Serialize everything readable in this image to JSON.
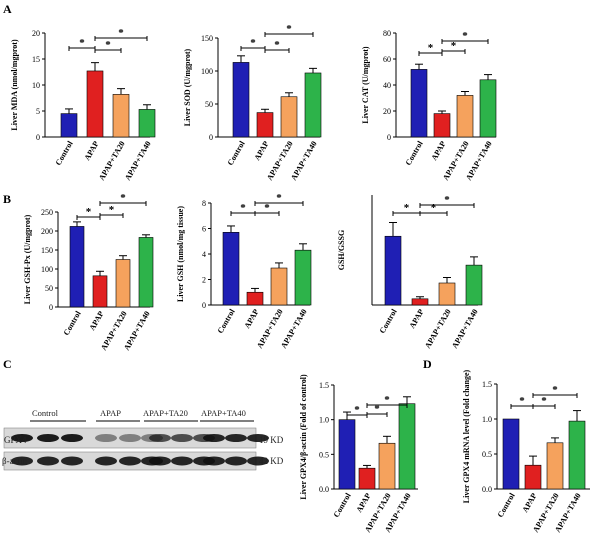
{
  "panels": [
    {
      "letter": "A"
    },
    {
      "letter": "B"
    },
    {
      "letter": "C"
    },
    {
      "letter": "D"
    }
  ],
  "colors": {
    "Control": "#1f1fb4",
    "APAP": "#e02020",
    "APAP+TA20": "#f5a25d",
    "APAP+TA40": "#2db34a"
  },
  "blot": {
    "lanes": [
      "Control",
      "APAP",
      "APAP+TA20",
      "APAP+TA40"
    ],
    "rows": [
      {
        "name": "GPX4",
        "kd": "19 KD"
      },
      {
        "name": "β-actin",
        "kd": "42 KD"
      }
    ]
  },
  "chart_data": [
    {
      "id": "mda",
      "type": "bar",
      "ylabel": "Liver MDA (nmol/mgprot)",
      "ylim": [
        0,
        20
      ],
      "yticks": [
        0,
        5,
        10,
        15,
        20
      ],
      "categories": [
        "Control",
        "APAP",
        "APAP+TA20",
        "APAP+TA40"
      ],
      "values": [
        4.5,
        12.7,
        8.2,
        5.3
      ],
      "errors": [
        0.9,
        1.6,
        1.1,
        0.9
      ]
    },
    {
      "id": "sod",
      "type": "bar",
      "ylabel": "Liver SOD (U/mgprot)",
      "ylim": [
        0,
        150
      ],
      "yticks": [
        0,
        50,
        100,
        150
      ],
      "categories": [
        "Control",
        "APAP",
        "APAP+TA20",
        "APAP+TA40"
      ],
      "values": [
        113,
        37,
        61,
        97
      ],
      "errors": [
        10,
        5,
        6,
        7
      ]
    },
    {
      "id": "cat",
      "type": "bar",
      "ylabel": "Liver CAT (U/mgprot)",
      "ylim": [
        0,
        80
      ],
      "yticks": [
        0,
        20,
        40,
        60,
        80
      ],
      "categories": [
        "Control",
        "APAP",
        "APAP+TA20",
        "APAP+TA40"
      ],
      "values": [
        52,
        18,
        32,
        44
      ],
      "errors": [
        4,
        2,
        3,
        4
      ]
    },
    {
      "id": "gshpx",
      "type": "bar",
      "ylabel": "Liver GSH-Px (U/mgprot)",
      "ylim": [
        0,
        250
      ],
      "yticks": [
        0,
        50,
        100,
        150,
        200,
        250
      ],
      "categories": [
        "Control",
        "APAP",
        "APAP+TA20",
        "APAP+TA40"
      ],
      "values": [
        212,
        82,
        125,
        183
      ],
      "errors": [
        12,
        12,
        10,
        7
      ]
    },
    {
      "id": "gsh",
      "type": "bar",
      "ylabel": "Liver GSH (nmol/mg tissue)",
      "ylim": [
        0,
        8
      ],
      "yticks": [
        0,
        2,
        4,
        6,
        8
      ],
      "categories": [
        "Control",
        "APAP",
        "APAP+TA20",
        "APAP+TA40"
      ],
      "values": [
        5.7,
        1.0,
        2.9,
        4.3
      ],
      "errors": [
        0.5,
        0.3,
        0.4,
        0.5
      ]
    },
    {
      "id": "gssg",
      "type": "bar",
      "ylabel": "GSH/GSSG",
      "ylim": [
        0,
        8
      ],
      "yticks": [],
      "categories": [
        "Control",
        "APAP",
        "APAP+TA20",
        "APAP+TA40"
      ],
      "values": [
        5.0,
        0.45,
        1.6,
        2.9
      ],
      "errors": [
        1.0,
        0.15,
        0.4,
        0.6
      ]
    },
    {
      "id": "gpx4p",
      "type": "bar",
      "ylabel": "Liver GPX4/β-actin (Fold of control)",
      "ylim": [
        0,
        1.5
      ],
      "yticks": [
        0.0,
        0.5,
        1.0,
        1.5
      ],
      "categories": [
        "Control",
        "APAP",
        "APAP+TA20",
        "APAP+TA40"
      ],
      "values": [
        1.0,
        0.3,
        0.66,
        1.23
      ],
      "errors": [
        0.11,
        0.04,
        0.1,
        0.1
      ]
    },
    {
      "id": "gpx4m",
      "type": "bar",
      "ylabel": "Liver GPX4 mRNA level (Fold change)",
      "ylim": [
        0,
        1.5
      ],
      "yticks": [
        0.0,
        0.5,
        1.0,
        1.5
      ],
      "categories": [
        "Control",
        "APAP",
        "APAP+TA20",
        "APAP+TA40"
      ],
      "values": [
        1.0,
        0.34,
        0.66,
        0.97
      ],
      "errors": [
        0.0,
        0.13,
        0.07,
        0.15
      ]
    }
  ],
  "significance": "*"
}
